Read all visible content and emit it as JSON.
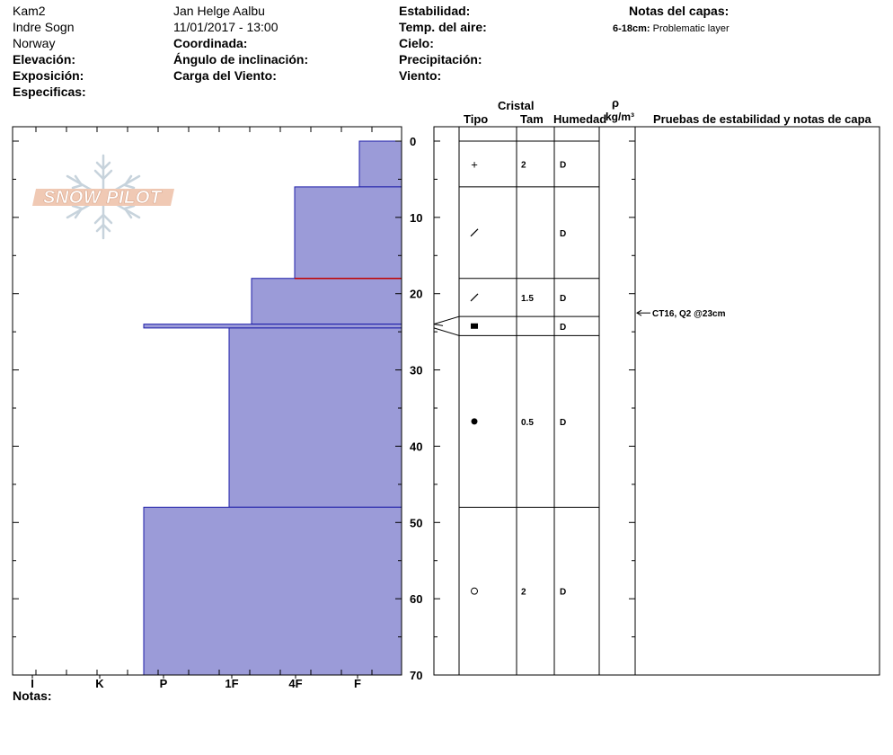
{
  "header": {
    "col1": [
      "Kam2",
      "Indre Sogn",
      "Norway"
    ],
    "col1_labels": [
      "Elevación:",
      "Exposición:",
      "Especificas:"
    ],
    "observer": "Jan Helge Aalbu",
    "datetime": "11/01/2017 - 13:00",
    "col2_labels": [
      "Coordinada:",
      "Ángulo de inclinación:",
      "Carga del Viento:"
    ],
    "col3_labels": [
      "Estabilidad:",
      "Temp. del aire:",
      "Cielo:",
      "Precipitación:",
      "Viento:"
    ],
    "layer_notes_title": "Notas del capas:",
    "layer_note_range": "6-18cm:",
    "layer_note_text": "Problematic layer"
  },
  "logo": {
    "text": "SNOW PILOT"
  },
  "footer": {
    "notes_label": "Notas:"
  },
  "columns": {
    "cristal": "Cristal",
    "tipo": "Tipo",
    "tam": "Tam",
    "humedad": "Humedad",
    "rho": "ρ",
    "density_unit": "kg/m³",
    "tests": "Pruebas de estabilidad y notas de capa"
  },
  "layers": [
    {
      "top": 0,
      "bottom": 6,
      "symbol": "+",
      "size": "2",
      "moisture": "D"
    },
    {
      "top": 6,
      "bottom": 18,
      "symbol": "/",
      "size": "",
      "moisture": "D"
    },
    {
      "top": 18,
      "bottom": 23,
      "symbol": "/",
      "size": "1.5",
      "moisture": "D"
    },
    {
      "top": 23,
      "bottom": 25.5,
      "symbol": "▪",
      "size": "",
      "moisture": "D"
    },
    {
      "top": 25.5,
      "bottom": 48,
      "symbol": "●",
      "size": "0.5",
      "moisture": "D"
    },
    {
      "top": 48,
      "bottom": 70,
      "symbol": "○",
      "size": "2",
      "moisture": "D"
    }
  ],
  "stability_test": {
    "depth": 23,
    "text": "CT16, Q2 @23cm"
  },
  "chart_data": {
    "type": "bar",
    "title": "",
    "xlabel": "",
    "ylabel": "",
    "y_ticks": [
      0,
      10,
      20,
      30,
      40,
      50,
      60,
      70
    ],
    "ylim": [
      0,
      70
    ],
    "hardness_scale": [
      "I",
      "K",
      "P",
      "1F",
      "4F",
      "F"
    ],
    "hardness_profile": [
      {
        "top": 0,
        "bottom": 6,
        "hardness": "F"
      },
      {
        "top": 6,
        "bottom": 18,
        "hardness": "4F"
      },
      {
        "top": 18,
        "bottom": 24,
        "hardness": "1F+"
      },
      {
        "top": 24,
        "bottom": 24.5,
        "hardness": "P"
      },
      {
        "top": 24.5,
        "bottom": 48,
        "hardness": "1F"
      },
      {
        "top": 48,
        "bottom": 70,
        "hardness": "P"
      }
    ],
    "problem_layer_depth": 18,
    "colors": {
      "fill": "#9b9bd8",
      "edge": "#1c1ca8",
      "problem": "#c00000"
    }
  }
}
